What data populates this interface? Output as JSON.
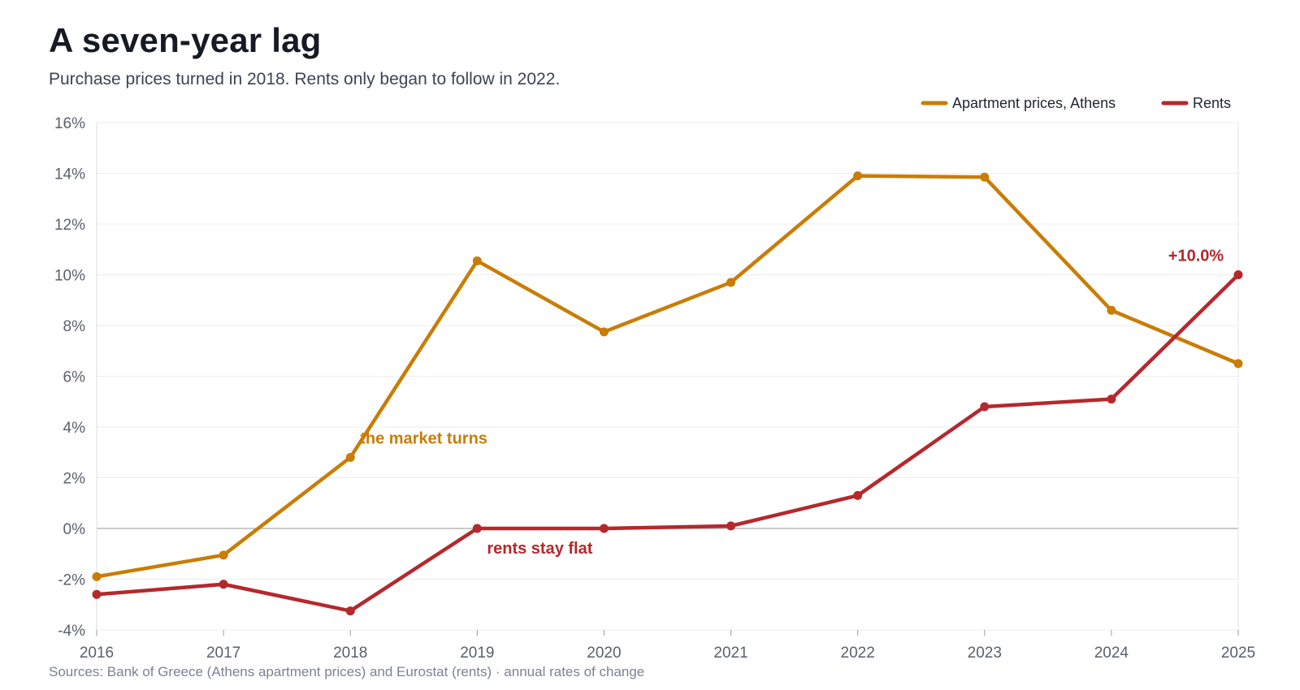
{
  "header": {
    "title": "A seven-year lag",
    "subtitle": "Purchase prices turned in 2018. Rents only began to follow in 2022."
  },
  "footer": {
    "source": "Sources: Bank of Greece (Athens apartment prices) and Eurostat (rents) · annual rates of change"
  },
  "colors": {
    "prices": "#c97d06",
    "rents": "#b5282c",
    "grid": "#ececec",
    "zero": "#b8b8b8"
  },
  "chart_data": {
    "type": "line",
    "title": "A seven-year lag",
    "subtitle": "Purchase prices turned in 2018. Rents only began to follow in 2022.",
    "x": [
      2016,
      2017,
      2018,
      2019,
      2020,
      2021,
      2022,
      2023,
      2024,
      2025
    ],
    "series": [
      {
        "name": "Apartment prices, Athens",
        "color": "#c97d06",
        "values": [
          -1.9,
          -1.05,
          2.8,
          10.55,
          7.75,
          9.7,
          13.9,
          13.85,
          8.6,
          6.5
        ]
      },
      {
        "name": "Rents",
        "color": "#b5282c",
        "values": [
          -2.6,
          -2.2,
          -3.25,
          0.0,
          0.0,
          0.1,
          1.3,
          4.8,
          5.1,
          10.0
        ]
      }
    ],
    "ylim": [
      -4,
      16
    ],
    "yticks": [
      -4,
      -2,
      0,
      2,
      4,
      6,
      8,
      10,
      12,
      14,
      16
    ],
    "ytick_labels": [
      "-4%",
      "-2%",
      "0%",
      "2%",
      "4%",
      "6%",
      "8%",
      "10%",
      "12%",
      "14%",
      "16%"
    ],
    "xtick_labels": [
      "2016",
      "2017",
      "2018",
      "2019",
      "2020",
      "2021",
      "2022",
      "2023",
      "2024",
      "2025"
    ],
    "grid": true,
    "legend": "top-right",
    "annotations": [
      {
        "text": "the market turns",
        "x": 2018,
        "y": 2.8,
        "series": 0
      },
      {
        "text": "rents stay flat",
        "x": 2019,
        "y": 0.0,
        "series": 1
      },
      {
        "text": "+10.0%",
        "x": 2025,
        "y": 10.0,
        "series": 1
      }
    ]
  }
}
